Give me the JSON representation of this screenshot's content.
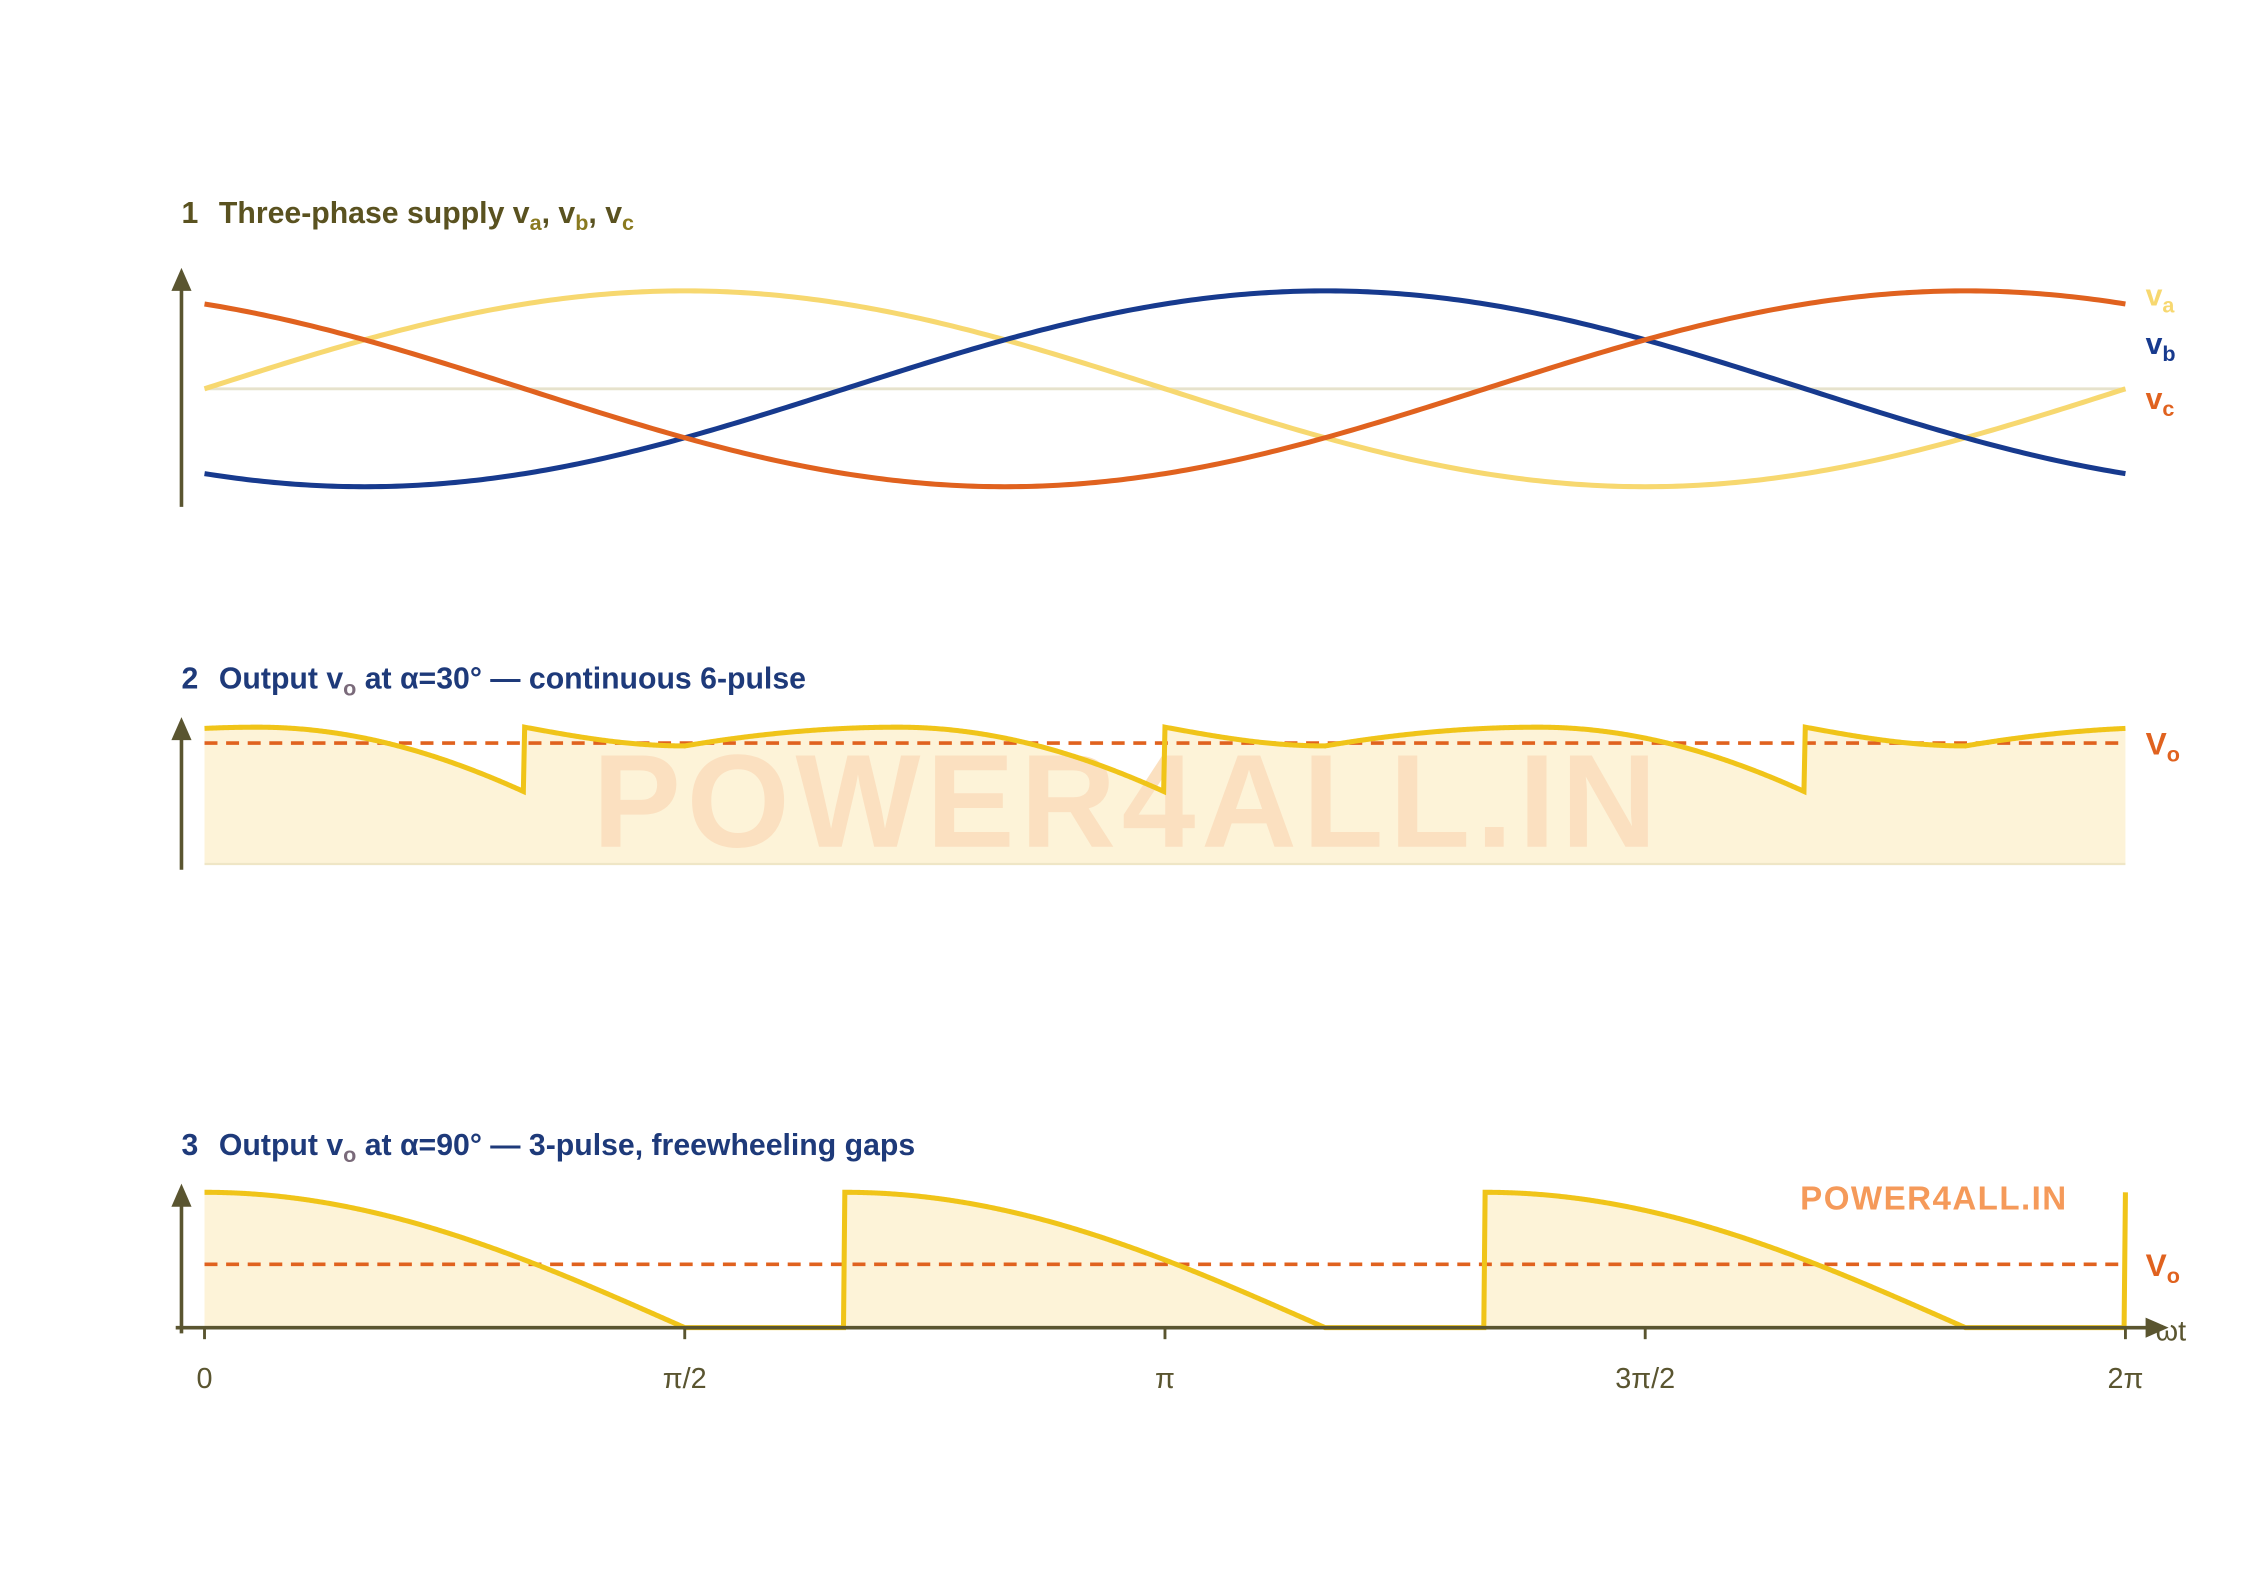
{
  "panels": [
    {
      "number": "1",
      "title": [
        {
          "text": "Three-phase supply  v"
        },
        {
          "sub": "a"
        },
        {
          "text": ", v"
        },
        {
          "sub": "b"
        },
        {
          "text": ", v"
        },
        {
          "sub": "c"
        }
      ],
      "labels": [
        {
          "text": "v",
          "sub": "a"
        },
        {
          "text": "v",
          "sub": "b"
        },
        {
          "text": "v",
          "sub": "c"
        }
      ]
    },
    {
      "number": "2",
      "title": [
        {
          "text": "Output v"
        },
        {
          "sub": "o"
        },
        {
          "text": " at α=30° — continuous 6-pulse"
        }
      ],
      "labels": [
        {
          "text": "V",
          "sub": "o"
        }
      ]
    },
    {
      "number": "3",
      "title": [
        {
          "text": "Output v"
        },
        {
          "sub": "o"
        },
        {
          "text": " at α=90° — 3-pulse, freewheeling gaps"
        }
      ],
      "labels": [
        {
          "text": "V",
          "sub": "o"
        }
      ]
    }
  ],
  "x_axis": {
    "ticks": [
      "0",
      "π/2",
      "π",
      "3π/2",
      "2π"
    ],
    "label": "ωt"
  },
  "watermarks": [
    "POWER4ALL.IN",
    "POWER4ALL.IN"
  ]
}
